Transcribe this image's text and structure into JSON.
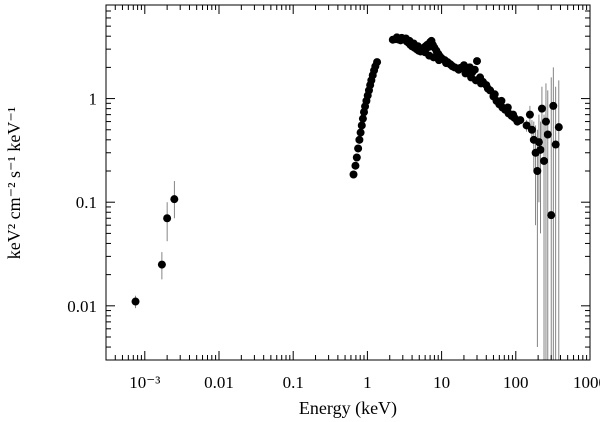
{
  "chart_data": {
    "type": "scatter",
    "xlabel": "Energy (keV)",
    "ylabel": "keV² cm⁻² s⁻¹ keV⁻¹",
    "xscale": "log",
    "yscale": "log",
    "xlim": [
      0.0003,
      1000
    ],
    "ylim": [
      0.003,
      8
    ],
    "xticks": [
      {
        "value": 0.001,
        "label": "10⁻³"
      },
      {
        "value": 0.01,
        "label": "0.01"
      },
      {
        "value": 0.1,
        "label": "0.1"
      },
      {
        "value": 1,
        "label": "1"
      },
      {
        "value": 10,
        "label": "10"
      },
      {
        "value": 100,
        "label": "100"
      },
      {
        "value": 1000,
        "label": "1000"
      }
    ],
    "yticks": [
      {
        "value": 0.01,
        "label": "0.01"
      },
      {
        "value": 0.1,
        "label": "0.1"
      },
      {
        "value": 1,
        "label": "1"
      }
    ],
    "grid": false,
    "marker_color": "#000000",
    "errorbar_color": "#666666",
    "series": [
      {
        "points": [
          {
            "x": 0.00075,
            "y": 0.011,
            "ylo": 0.0095,
            "yhi": 0.0125
          },
          {
            "x": 0.0017,
            "y": 0.025,
            "ylo": 0.018,
            "yhi": 0.033
          },
          {
            "x": 0.002,
            "y": 0.07,
            "ylo": 0.042,
            "yhi": 0.1
          },
          {
            "x": 0.0025,
            "y": 0.107,
            "ylo": 0.07,
            "yhi": 0.16
          },
          {
            "x": 0.65,
            "y": 0.185
          },
          {
            "x": 0.69,
            "y": 0.225
          },
          {
            "x": 0.72,
            "y": 0.27
          },
          {
            "x": 0.75,
            "y": 0.33
          },
          {
            "x": 0.78,
            "y": 0.4
          },
          {
            "x": 0.81,
            "y": 0.47
          },
          {
            "x": 0.84,
            "y": 0.55
          },
          {
            "x": 0.87,
            "y": 0.64
          },
          {
            "x": 0.9,
            "y": 0.74
          },
          {
            "x": 0.93,
            "y": 0.84
          },
          {
            "x": 0.97,
            "y": 0.95
          },
          {
            "x": 1.01,
            "y": 1.07
          },
          {
            "x": 1.05,
            "y": 1.2
          },
          {
            "x": 1.09,
            "y": 1.35
          },
          {
            "x": 1.13,
            "y": 1.5
          },
          {
            "x": 1.18,
            "y": 1.68
          },
          {
            "x": 1.23,
            "y": 1.87
          },
          {
            "x": 1.28,
            "y": 2.05
          },
          {
            "x": 1.35,
            "y": 2.25
          },
          {
            "x": 2.2,
            "y": 3.7
          },
          {
            "x": 2.4,
            "y": 3.75
          },
          {
            "x": 2.6,
            "y": 3.72
          },
          {
            "x": 2.8,
            "y": 3.65
          },
          {
            "x": 3.0,
            "y": 3.78
          },
          {
            "x": 3.2,
            "y": 3.7
          },
          {
            "x": 3.4,
            "y": 3.55
          },
          {
            "x": 3.6,
            "y": 3.45
          },
          {
            "x": 3.8,
            "y": 3.3
          },
          {
            "x": 4.0,
            "y": 3.2
          },
          {
            "x": 4.3,
            "y": 3.1
          },
          {
            "x": 4.6,
            "y": 3.0
          },
          {
            "x": 4.9,
            "y": 2.9
          },
          {
            "x": 5.2,
            "y": 2.85
          },
          {
            "x": 5.5,
            "y": 2.95
          },
          {
            "x": 5.8,
            "y": 3.1
          },
          {
            "x": 6.1,
            "y": 3.2
          },
          {
            "x": 6.4,
            "y": 3.3
          },
          {
            "x": 6.7,
            "y": 3.15
          },
          {
            "x": 7.0,
            "y": 3.5
          },
          {
            "x": 7.3,
            "y": 3.6
          },
          {
            "x": 7.6,
            "y": 3.3
          },
          {
            "x": 8.0,
            "y": 3.1
          },
          {
            "x": 8.5,
            "y": 2.9
          },
          {
            "x": 9.0,
            "y": 2.7
          },
          {
            "x": 9.5,
            "y": 2.55
          },
          {
            "x": 10.0,
            "y": 2.45
          },
          {
            "x": 11.0,
            "y": 2.35
          },
          {
            "x": 12.0,
            "y": 2.25
          },
          {
            "x": 13.0,
            "y": 2.15
          },
          {
            "x": 14.0,
            "y": 2.05
          },
          {
            "x": 15.0,
            "y": 2.0
          },
          {
            "x": 16.5,
            "y": 1.95
          },
          {
            "x": 18.0,
            "y": 1.98
          },
          {
            "x": 20.0,
            "y": 2.1
          },
          {
            "x": 22.0,
            "y": 1.95
          },
          {
            "x": 24.0,
            "y": 2.0
          },
          {
            "x": 26.0,
            "y": 1.8
          },
          {
            "x": 28.0,
            "y": 1.9
          },
          {
            "x": 30.0,
            "y": 2.3
          },
          {
            "x": 33.0,
            "y": 1.6
          },
          {
            "x": 36.0,
            "y": 1.45
          },
          {
            "x": 40.0,
            "y": 1.35
          },
          {
            "x": 45.0,
            "y": 1.2
          },
          {
            "x": 50.0,
            "y": 1.05
          },
          {
            "x": 55.0,
            "y": 0.95
          },
          {
            "x": 60.0,
            "y": 0.88
          },
          {
            "x": 66.0,
            "y": 0.82
          },
          {
            "x": 72.0,
            "y": 0.78
          },
          {
            "x": 80.0,
            "y": 0.72
          },
          {
            "x": 88.0,
            "y": 0.68
          },
          {
            "x": 96.0,
            "y": 0.65
          },
          {
            "x": 105.0,
            "y": 0.6
          },
          {
            "x": 2.5,
            "y": 3.9
          },
          {
            "x": 2.9,
            "y": 3.85
          },
          {
            "x": 3.3,
            "y": 3.8
          },
          {
            "x": 3.7,
            "y": 3.6
          },
          {
            "x": 4.2,
            "y": 3.4
          },
          {
            "x": 4.8,
            "y": 3.2
          },
          {
            "x": 5.4,
            "y": 3.0
          },
          {
            "x": 6.0,
            "y": 2.8
          },
          {
            "x": 6.8,
            "y": 2.6
          },
          {
            "x": 7.8,
            "y": 2.5
          },
          {
            "x": 9.2,
            "y": 2.35
          },
          {
            "x": 11.5,
            "y": 2.2
          },
          {
            "x": 13.5,
            "y": 2.1
          },
          {
            "x": 17.0,
            "y": 1.9
          },
          {
            "x": 21.0,
            "y": 1.75
          },
          {
            "x": 25.0,
            "y": 1.6
          },
          {
            "x": 29.0,
            "y": 1.5
          },
          {
            "x": 34.0,
            "y": 1.4
          },
          {
            "x": 42.0,
            "y": 1.25
          },
          {
            "x": 52.0,
            "y": 1.1
          },
          {
            "x": 64.0,
            "y": 0.95
          },
          {
            "x": 78.0,
            "y": 0.82
          },
          {
            "x": 92.0,
            "y": 0.7
          },
          {
            "x": 115.0,
            "y": 0.62
          },
          {
            "x": 140.0,
            "y": 0.55,
            "ylo": 0.48,
            "yhi": 0.62
          },
          {
            "x": 155.0,
            "y": 0.7,
            "ylo": 0.55,
            "yhi": 0.85
          },
          {
            "x": 165.0,
            "y": 0.5,
            "ylo": 0.38,
            "yhi": 0.62
          },
          {
            "x": 175.0,
            "y": 0.4,
            "ylo": 0.2,
            "yhi": 0.6
          },
          {
            "x": 185.0,
            "y": 0.3,
            "ylo": 0.06,
            "yhi": 0.55
          },
          {
            "x": 195.0,
            "y": 0.2,
            "ylo": 0.004,
            "yhi": 0.5
          },
          {
            "x": 205.0,
            "y": 0.38,
            "ylo": 0.1,
            "yhi": 0.7
          },
          {
            "x": 215.0,
            "y": 0.32,
            "ylo": 0.05,
            "yhi": 0.6
          },
          {
            "x": 225.0,
            "y": 0.8,
            "ylo": 0.3,
            "yhi": 1.3
          },
          {
            "x": 240.0,
            "y": 0.25,
            "ylo": 0.003,
            "yhi": 0.7
          },
          {
            "x": 255.0,
            "y": 0.6,
            "ylo": 0.003,
            "yhi": 1.4
          },
          {
            "x": 270.0,
            "y": 0.45,
            "ylo": 0.003,
            "yhi": 1.2
          },
          {
            "x": 300.0,
            "y": 0.075,
            "ylo": 0.003,
            "yhi": 1.6
          },
          {
            "x": 320.0,
            "y": 0.85,
            "ylo": 0.003,
            "yhi": 2.0
          },
          {
            "x": 345.0,
            "y": 0.36,
            "ylo": 0.003,
            "yhi": 1.3
          },
          {
            "x": 380.0,
            "y": 0.53,
            "ylo": 0.003,
            "yhi": 1.5
          }
        ]
      }
    ]
  }
}
